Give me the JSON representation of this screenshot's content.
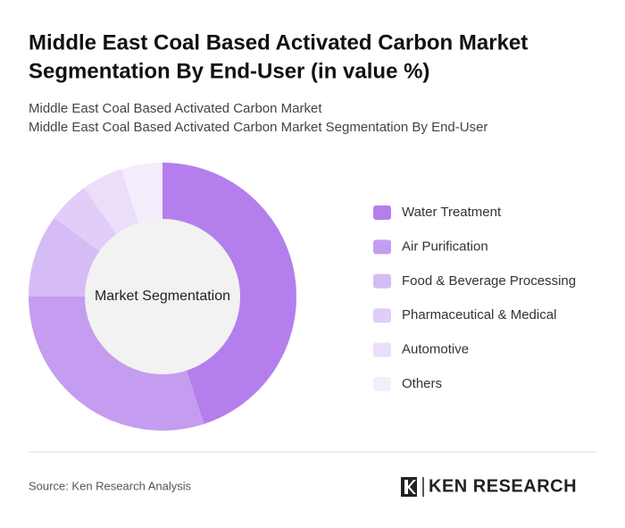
{
  "chart_data": {
    "type": "donut",
    "title": [
      "Middle East Coal Based Activated Carbon Market",
      "Segmentation By End-User (in value %)"
    ],
    "subtitle": [
      "Middle East Coal Based Activated Carbon Market",
      "Middle East Coal Based Activated Carbon Market Segmentation By End-User"
    ],
    "center_label": "Market Segmentation",
    "categories": [
      "Water Treatment",
      "Air Purification",
      "Food & Beverage Processing",
      "Pharmaceutical & Medical",
      "Automotive",
      "Others"
    ],
    "values": [
      45,
      30,
      10,
      5,
      5,
      5
    ],
    "colors": [
      "#b47fec",
      "#c49df1",
      "#d6bcf5",
      "#e1cdf8",
      "#ebdefa",
      "#f4edfc"
    ],
    "source": "Source: Ken Research Analysis",
    "logo": "KEN RESEARCH"
  }
}
